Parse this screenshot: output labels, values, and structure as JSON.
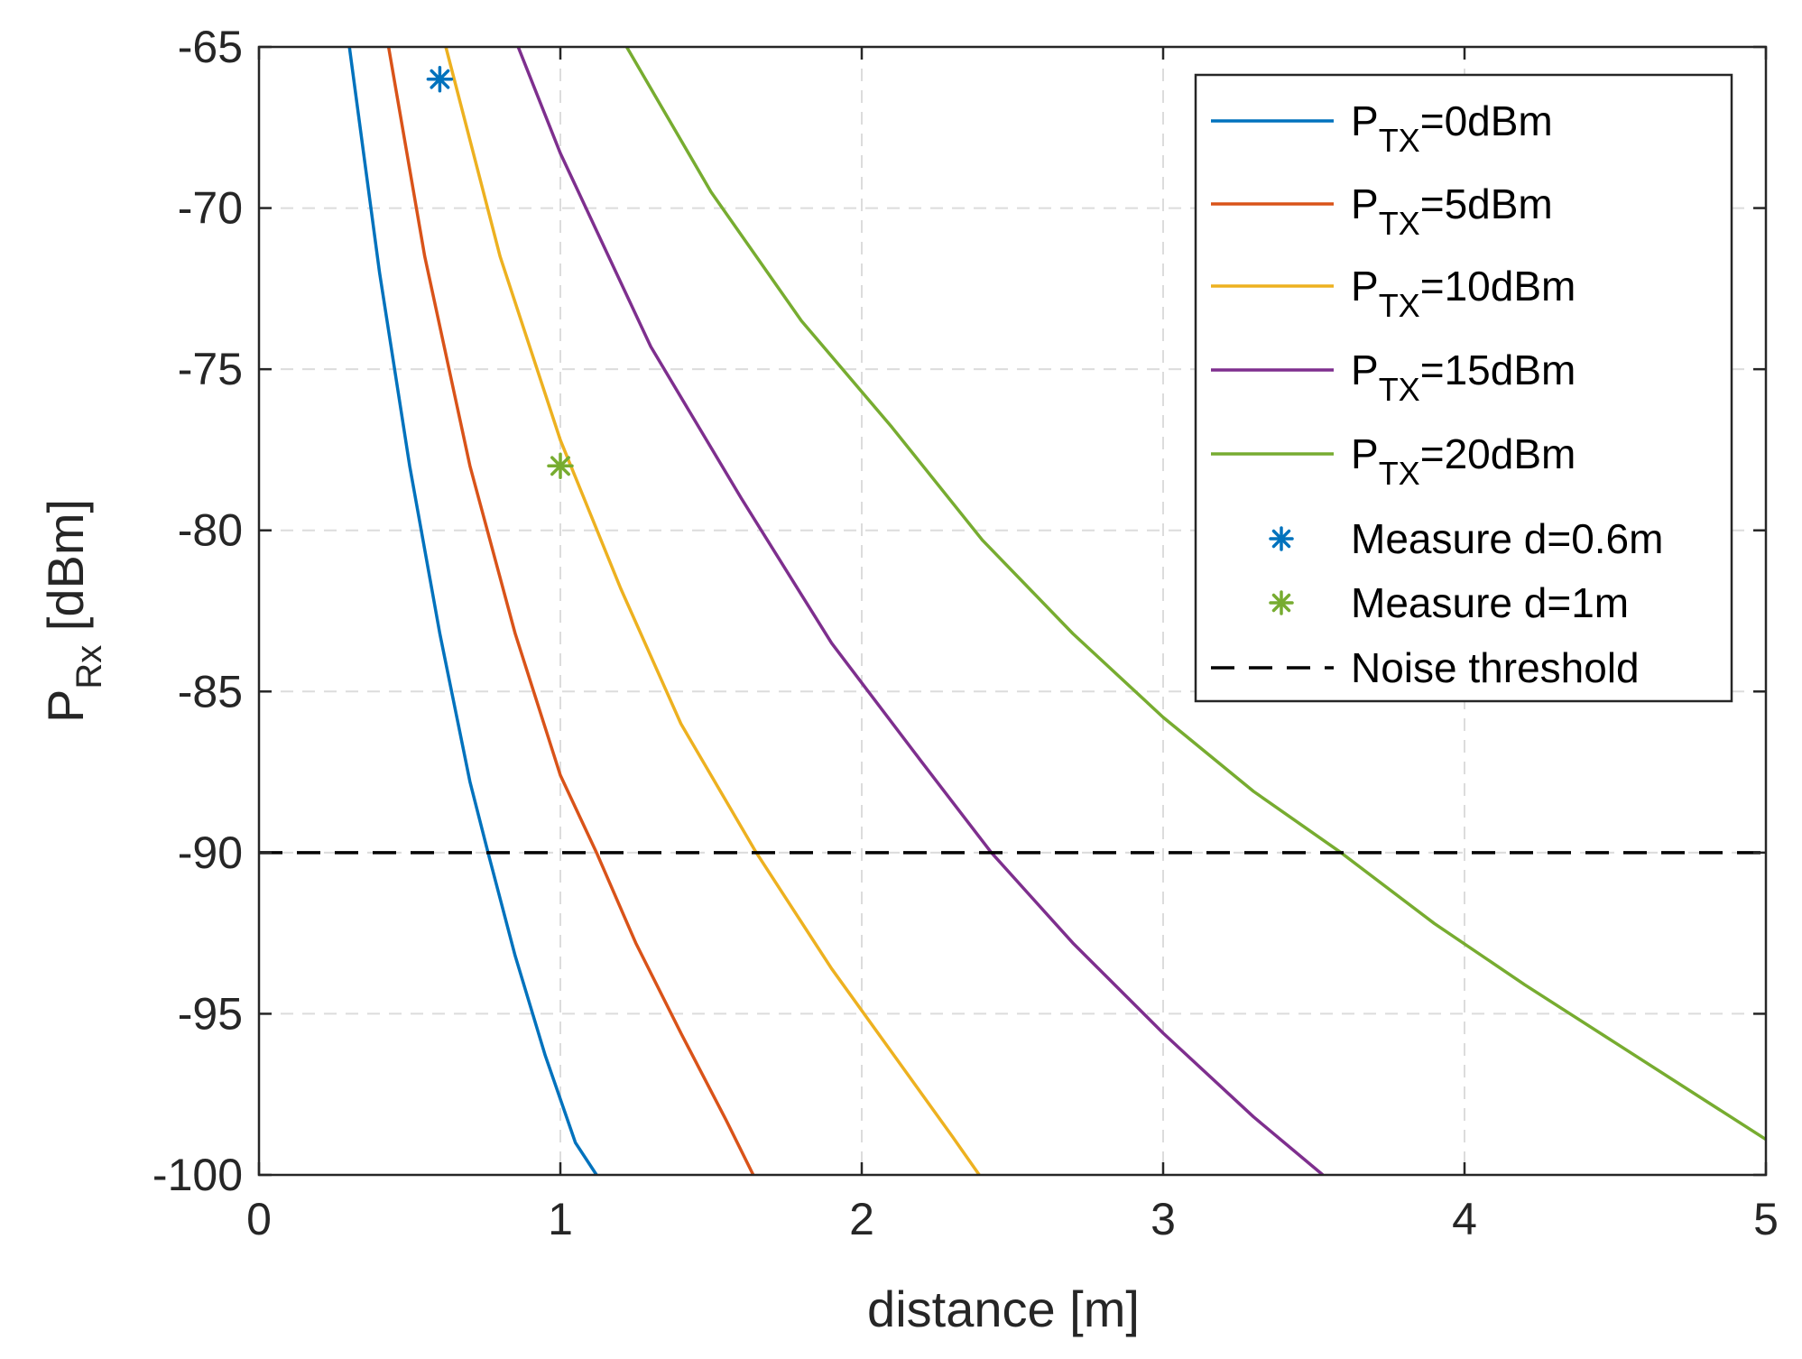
{
  "chart_data": {
    "type": "line",
    "title": "",
    "xlabel": "distance [m]",
    "ylabel": {
      "main": "P",
      "sub": "Rx",
      "suffix": " [dBm]"
    },
    "xlim": [
      0,
      5
    ],
    "ylim": [
      -100,
      -65
    ],
    "xticks": [
      0,
      1,
      2,
      3,
      4,
      5
    ],
    "yticks": [
      -65,
      -70,
      -75,
      -80,
      -85,
      -90,
      -95,
      -100
    ],
    "xtick_labels": [
      "0",
      "1",
      "2",
      "3",
      "4",
      "5"
    ],
    "ytick_labels": [
      "-65",
      "-70",
      "-75",
      "-80",
      "-85",
      "-90",
      "-95",
      "-100"
    ],
    "grid": true,
    "legend_position": "top-right",
    "series": [
      {
        "name": "PTX=0dBm",
        "label_main": "P",
        "label_sub": "TX",
        "label_suffix": "=0dBm",
        "color": "#0072BD",
        "x": [
          0.3,
          0.4,
          0.5,
          0.6,
          0.7,
          0.76,
          0.85,
          0.95,
          1.05,
          1.12
        ],
        "y": [
          -65,
          -72,
          -78,
          -83.2,
          -87.8,
          -90,
          -93.2,
          -96.3,
          -99,
          -100
        ]
      },
      {
        "name": "PTX=5dBm",
        "label_main": "P",
        "label_sub": "TX",
        "label_suffix": "=5dBm",
        "color": "#D95319",
        "x": [
          0.43,
          0.55,
          0.7,
          0.85,
          1.0,
          1.12,
          1.25,
          1.4,
          1.55,
          1.64
        ],
        "y": [
          -65,
          -71.5,
          -78,
          -83.2,
          -87.6,
          -90,
          -92.8,
          -95.6,
          -98.3,
          -100
        ]
      },
      {
        "name": "PTX=10dBm",
        "label_main": "P",
        "label_sub": "TX",
        "label_suffix": "=10dBm",
        "color": "#EDB120",
        "x": [
          0.62,
          0.8,
          1.0,
          1.2,
          1.4,
          1.65,
          1.9,
          2.1,
          2.3,
          2.39
        ],
        "y": [
          -65,
          -71.5,
          -77.2,
          -81.8,
          -86,
          -90,
          -93.6,
          -96.2,
          -98.8,
          -100
        ]
      },
      {
        "name": "PTX=15dBm",
        "label_main": "P",
        "label_sub": "TX",
        "label_suffix": "=15dBm",
        "color": "#7E2F8E",
        "x": [
          0.86,
          1.0,
          1.3,
          1.6,
          1.9,
          2.2,
          2.43,
          2.7,
          3.0,
          3.3,
          3.53
        ],
        "y": [
          -65,
          -68.3,
          -74.3,
          -79,
          -83.5,
          -87.2,
          -90,
          -92.8,
          -95.6,
          -98.2,
          -100
        ]
      },
      {
        "name": "PTX=20dBm",
        "label_main": "P",
        "label_sub": "TX",
        "label_suffix": "=20dBm",
        "color": "#77AC30",
        "x": [
          1.22,
          1.5,
          1.8,
          2.1,
          2.4,
          2.7,
          3.0,
          3.3,
          3.59,
          3.9,
          4.2,
          4.5,
          4.8,
          5.0
        ],
        "y": [
          -65,
          -69.5,
          -73.5,
          -76.8,
          -80.3,
          -83.2,
          -85.8,
          -88.1,
          -90,
          -92.2,
          -94.1,
          -95.9,
          -97.7,
          -98.9
        ]
      }
    ],
    "markers": [
      {
        "name": "Measure d=0.6m",
        "x": 0.6,
        "y": -66,
        "color": "#0072BD",
        "symbol": "*"
      },
      {
        "name": "Measure d=1m",
        "x": 1.0,
        "y": -78,
        "color": "#77AC30",
        "symbol": "*"
      }
    ],
    "threshold": {
      "name": "Noise threshold",
      "y": -90,
      "color": "#000000",
      "style": "dashed"
    }
  }
}
